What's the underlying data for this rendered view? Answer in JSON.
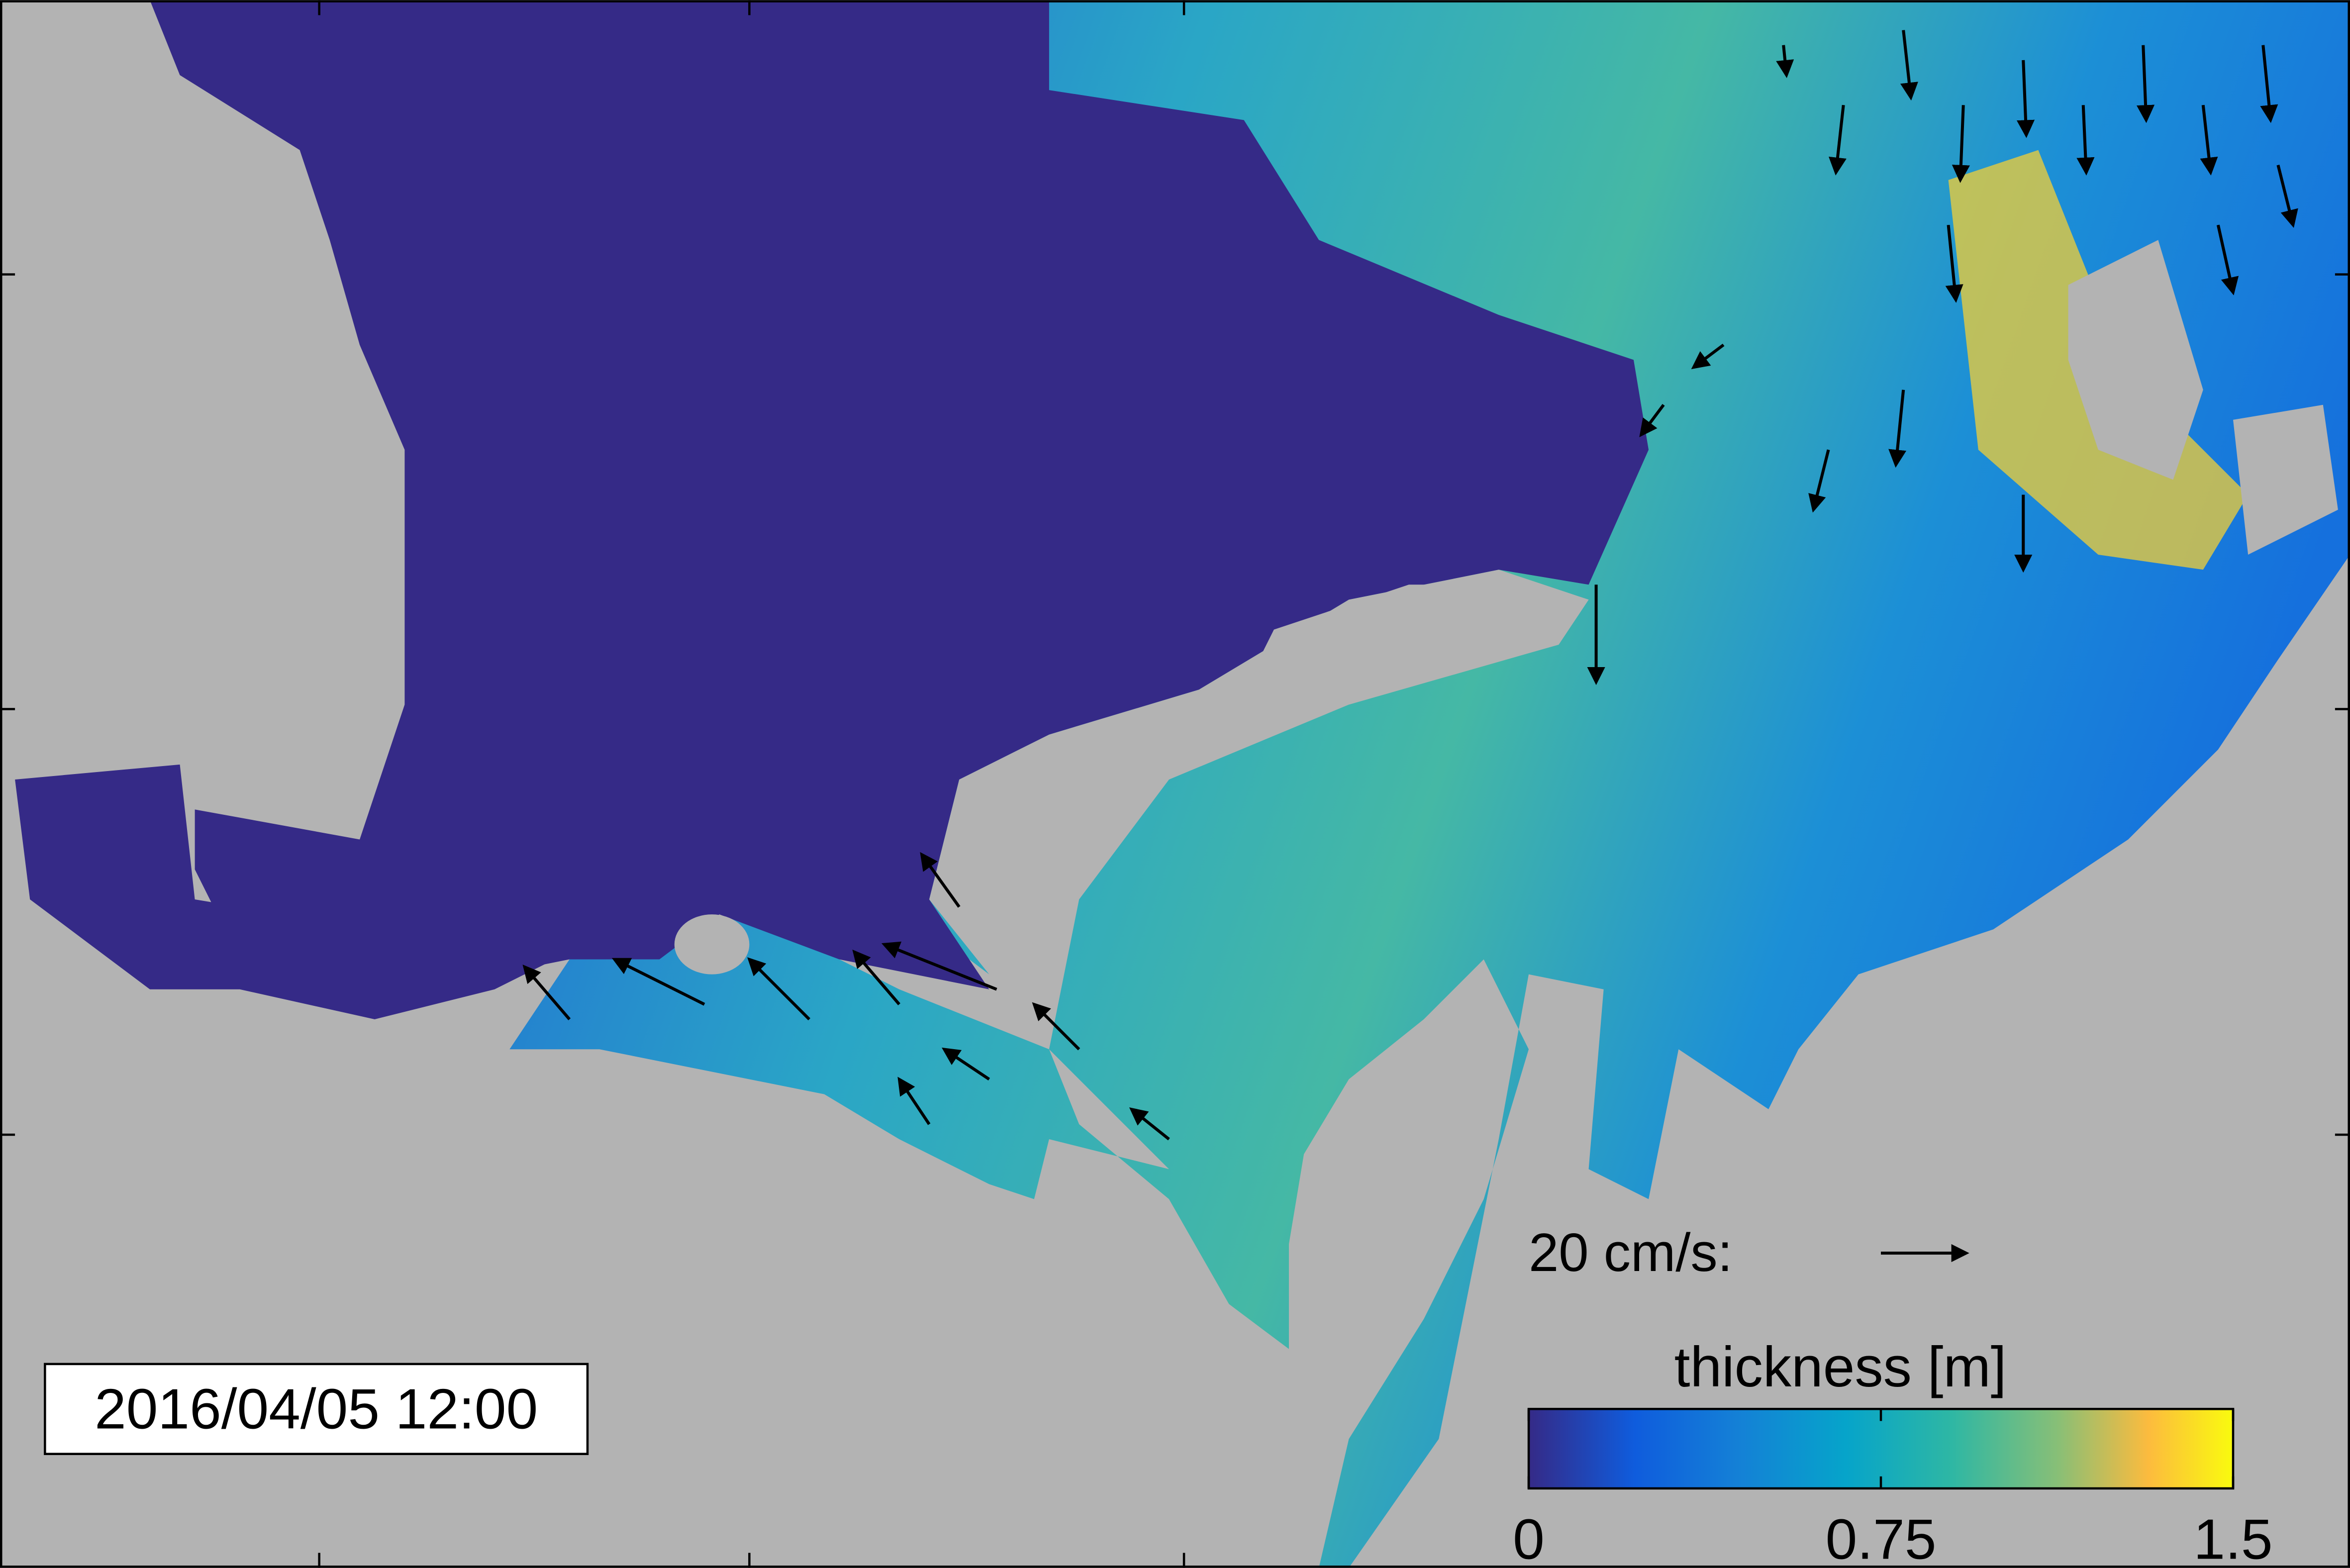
{
  "timestamp": "2016/04/05 12:00",
  "velocity_scale": {
    "label": "20 cm/s:"
  },
  "colorbar": {
    "label": "thickness [m]",
    "lim": [
      0,
      1.5
    ],
    "ticks": [
      0,
      0.75,
      1.5
    ]
  }
}
